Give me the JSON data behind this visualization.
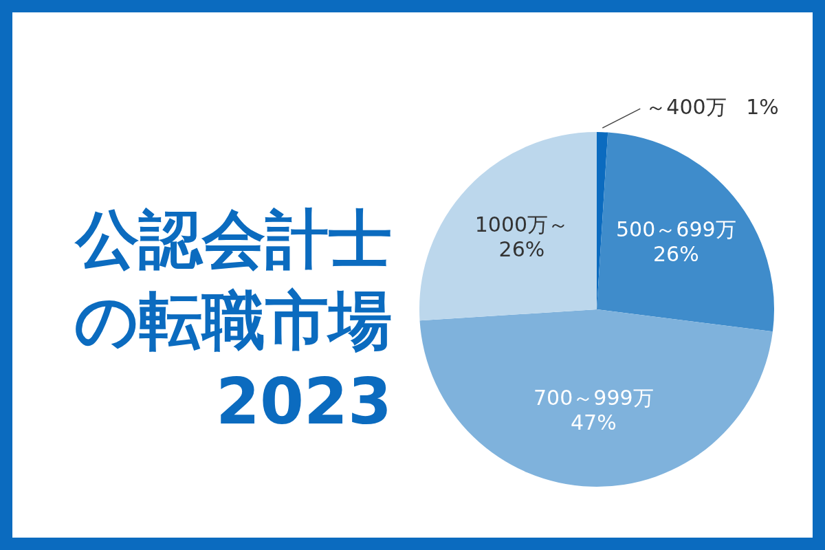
{
  "chart_data": {
    "type": "pie",
    "title": "公認会計士の転職市場",
    "subtitle": "2023",
    "categories": [
      "～400万",
      "500～699万",
      "700～999万",
      "1000万～"
    ],
    "values": [
      1,
      26,
      47,
      26
    ],
    "value_labels": [
      "1%",
      "26%",
      "47%",
      "26%"
    ],
    "colors": [
      "#0b6bbf",
      "#3f8ccb",
      "#7fb2dc",
      "#bcd7ec"
    ],
    "legend": false
  }
}
